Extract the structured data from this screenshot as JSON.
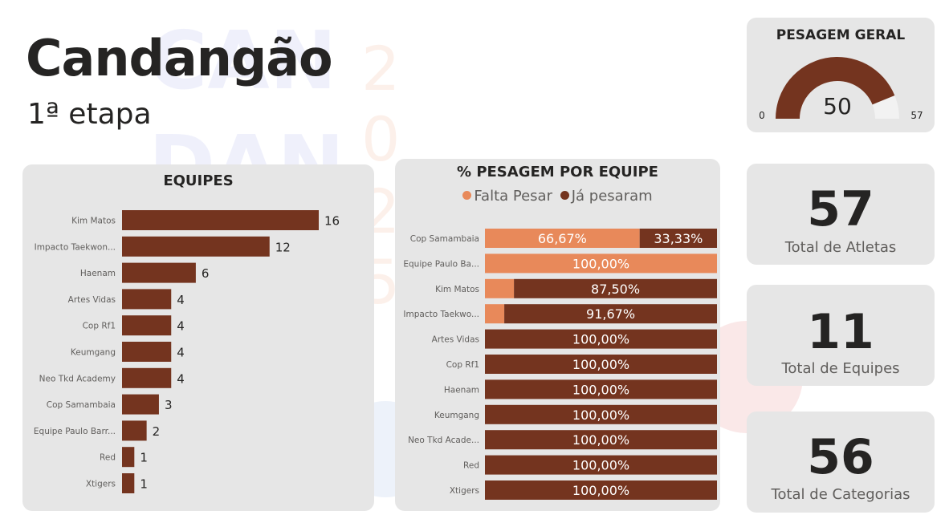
{
  "header": {
    "title": "Candangão",
    "subtitle": "1ª etapa"
  },
  "colors": {
    "dark": "#74341f",
    "light": "#e8895a",
    "card_bg": "#e6e6e6",
    "gauge_track": "#f2f2f2"
  },
  "gauge": {
    "title": "PESAGEM GERAL",
    "value": 50,
    "min": 0,
    "max": 57
  },
  "kpis": [
    {
      "value": "57",
      "label": "Total de Atletas"
    },
    {
      "value": "11",
      "label": "Total de Equipes"
    },
    {
      "value": "56",
      "label": "Total de Categorias"
    }
  ],
  "chart_data": [
    {
      "type": "bar",
      "orientation": "horizontal",
      "title": "EQUIPES",
      "categories": [
        "Kim Matos",
        "Impacto Taekwon...",
        "Haenam",
        "Artes Vidas",
        "Cop Rf1",
        "Keumgang",
        "Neo Tkd Academy",
        "Cop Samambaia",
        "Equipe Paulo Barr...",
        "Red",
        "Xtigers"
      ],
      "values": [
        16,
        12,
        6,
        4,
        4,
        4,
        4,
        3,
        2,
        1,
        1
      ],
      "xlim": [
        0,
        16
      ],
      "grid": false
    },
    {
      "type": "bar",
      "orientation": "horizontal",
      "stacked": "100%",
      "title": "% PESAGEM POR EQUIPE",
      "legend_position": "top",
      "categories": [
        "Cop Samambaia",
        "Equipe Paulo Ba...",
        "Kim Matos",
        "Impacto Taekwo...",
        "Artes Vidas",
        "Cop Rf1",
        "Haenam",
        "Keumgang",
        "Neo Tkd Acade...",
        "Red",
        "Xtigers"
      ],
      "series": [
        {
          "name": "Falta Pesar",
          "color": "#e8895a",
          "values": [
            66.67,
            100,
            12.5,
            8.33,
            0,
            0,
            0,
            0,
            0,
            0,
            0
          ],
          "labels": [
            "66,67%",
            "100,00%",
            "",
            "",
            "",
            "",
            "",
            "",
            "",
            "",
            ""
          ]
        },
        {
          "name": "Já pesaram",
          "color": "#74341f",
          "values": [
            33.33,
            0,
            87.5,
            91.67,
            100,
            100,
            100,
            100,
            100,
            100,
            100
          ],
          "labels": [
            "33,33%",
            "",
            "87,50%",
            "91,67%",
            "100,00%",
            "100,00%",
            "100,00%",
            "100,00%",
            "100,00%",
            "100,00%",
            "100,00%"
          ]
        }
      ],
      "xlim": [
        0,
        100
      ],
      "grid": false
    }
  ]
}
